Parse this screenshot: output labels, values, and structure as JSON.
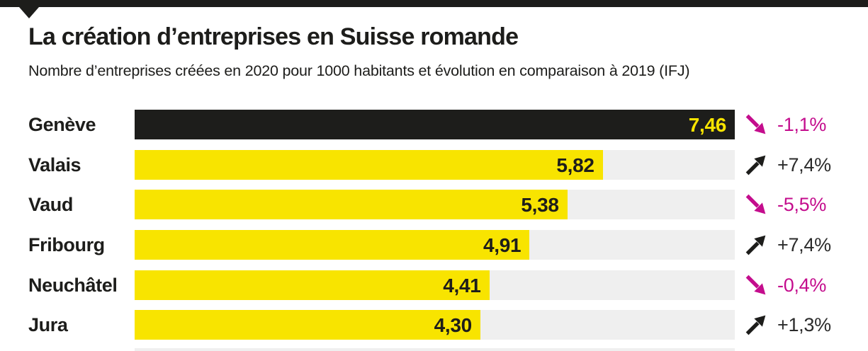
{
  "header": {
    "title": "La création d’entreprises en Suisse romande",
    "subtitle": "Nombre d’entreprises créées en 2020 pour 1000 habitants et évolution en comparaison à 2019 (IFJ)"
  },
  "colors": {
    "yellow": "#f8e400",
    "black": "#1d1d1b",
    "magenta": "#c40d8d",
    "track": "#efefef",
    "positive_text": "#2b2b2b"
  },
  "chart_data": {
    "type": "bar",
    "orientation": "horizontal",
    "title": "La création d’entreprises en Suisse romande",
    "subtitle": "Nombre d’entreprises créées en 2020 pour 1000 habitants et évolution en comparaison à 2019 (IFJ)",
    "source": "IFJ",
    "x_max": 7.46,
    "grid": false,
    "legend": false,
    "rows": [
      {
        "canton": "Genève",
        "value": 7.46,
        "value_label": "7,46",
        "change": -1.1,
        "change_label": "-1,1%",
        "trend": "down",
        "bar_color": "black",
        "width_pct": 100
      },
      {
        "canton": "Valais",
        "value": 5.82,
        "value_label": "5,82",
        "change": 7.4,
        "change_label": "+7,4%",
        "trend": "up",
        "bar_color": "yellow",
        "width_pct": 78.0
      },
      {
        "canton": "Vaud",
        "value": 5.38,
        "value_label": "5,38",
        "change": -5.5,
        "change_label": "-5,5%",
        "trend": "down",
        "bar_color": "yellow",
        "width_pct": 72.1
      },
      {
        "canton": "Fribourg",
        "value": 4.91,
        "value_label": "4,91",
        "change": 7.4,
        "change_label": "+7,4%",
        "trend": "up",
        "bar_color": "yellow",
        "width_pct": 65.8
      },
      {
        "canton": "Neuchâtel",
        "value": 4.41,
        "value_label": "4,41",
        "change": -0.4,
        "change_label": "-0,4%",
        "trend": "down",
        "bar_color": "yellow",
        "width_pct": 59.1
      },
      {
        "canton": "Jura",
        "value": 4.3,
        "value_label": "4,30",
        "change": 1.3,
        "change_label": "+1,3%",
        "trend": "up",
        "bar_color": "yellow",
        "width_pct": 57.6
      }
    ]
  }
}
